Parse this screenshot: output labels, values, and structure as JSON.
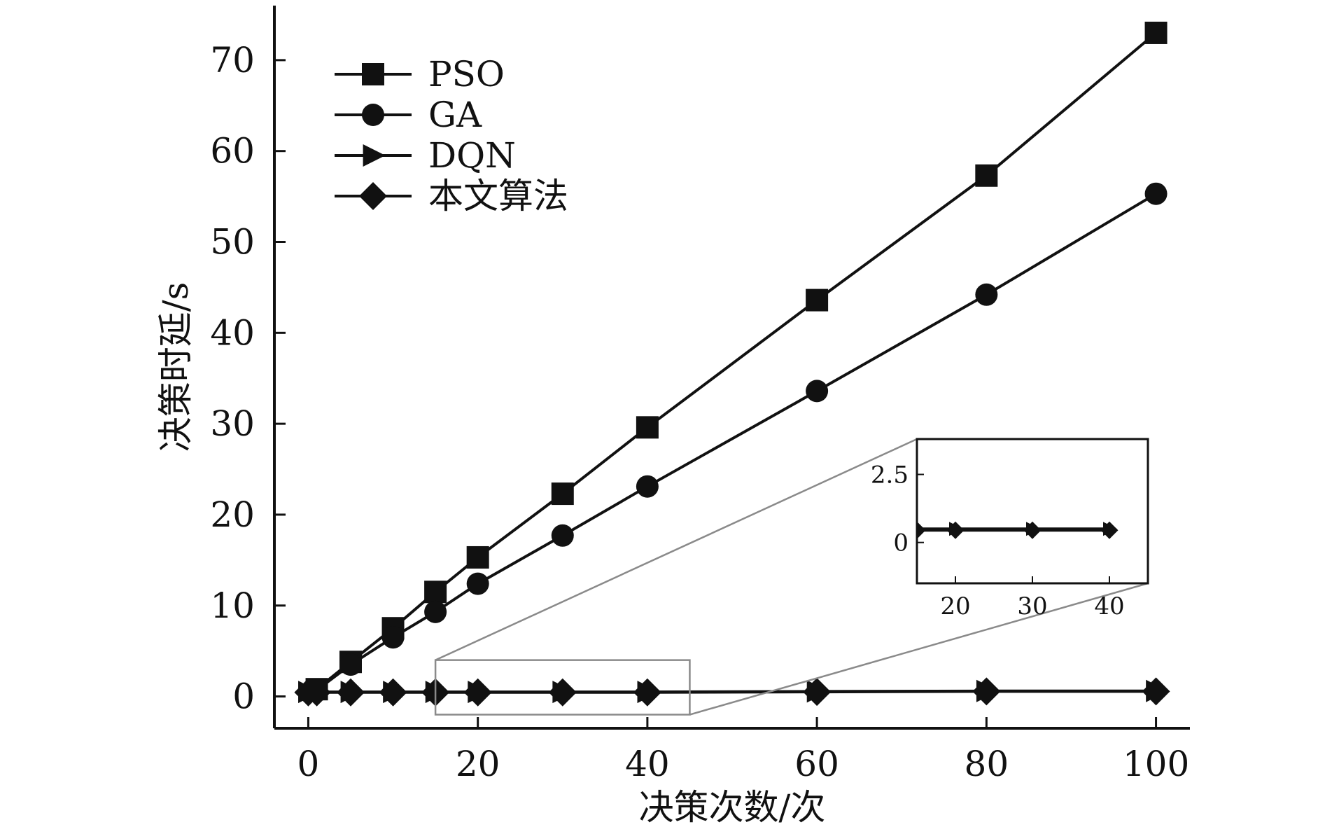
{
  "chart_data": {
    "type": "line",
    "title": "",
    "xlabel": "决策次数/次",
    "ylabel": "决策时延/s",
    "xlim": [
      -4,
      104
    ],
    "ylim": [
      -3.5,
      76
    ],
    "xticks": [
      0,
      20,
      40,
      60,
      80,
      100
    ],
    "yticks": [
      0,
      10,
      20,
      30,
      40,
      50,
      60,
      70
    ],
    "grid": false,
    "legend_position": "top-left",
    "line_color": "#111111",
    "series": [
      {
        "name": "PSO",
        "marker": "square",
        "x": [
          1,
          5,
          10,
          15,
          20,
          30,
          40,
          60,
          80,
          100
        ],
        "y": [
          0.8,
          3.8,
          7.5,
          11.5,
          15.3,
          22.3,
          29.6,
          43.6,
          57.3,
          73.0
        ]
      },
      {
        "name": "GA",
        "marker": "circle",
        "x": [
          1,
          5,
          10,
          15,
          20,
          30,
          40,
          60,
          80,
          100
        ],
        "y": [
          0.7,
          3.5,
          6.5,
          9.3,
          12.4,
          17.7,
          23.1,
          33.6,
          44.2,
          55.3
        ]
      },
      {
        "name": "DQN",
        "marker": "triangle-right",
        "x": [
          0,
          1,
          5,
          10,
          15,
          20,
          30,
          40,
          60,
          80,
          100
        ],
        "y": [
          0.5,
          0.5,
          0.5,
          0.5,
          0.5,
          0.5,
          0.5,
          0.5,
          0.55,
          0.6,
          0.6
        ]
      },
      {
        "name": "本文算法",
        "marker": "diamond",
        "x": [
          0,
          1,
          5,
          10,
          15,
          20,
          30,
          40,
          60,
          80,
          100
        ],
        "y": [
          0.45,
          0.45,
          0.45,
          0.45,
          0.45,
          0.45,
          0.45,
          0.45,
          0.5,
          0.55,
          0.55
        ]
      }
    ],
    "zoom_region": {
      "x": [
        15,
        45
      ],
      "y": [
        -2,
        4
      ]
    },
    "inset": {
      "xlim": [
        15,
        45
      ],
      "ylim": [
        -1.5,
        3.8
      ],
      "xticks": [
        20,
        30,
        40
      ],
      "yticks": [
        0,
        2.5
      ],
      "ytick_labels": [
        "0",
        "2.5"
      ]
    }
  }
}
